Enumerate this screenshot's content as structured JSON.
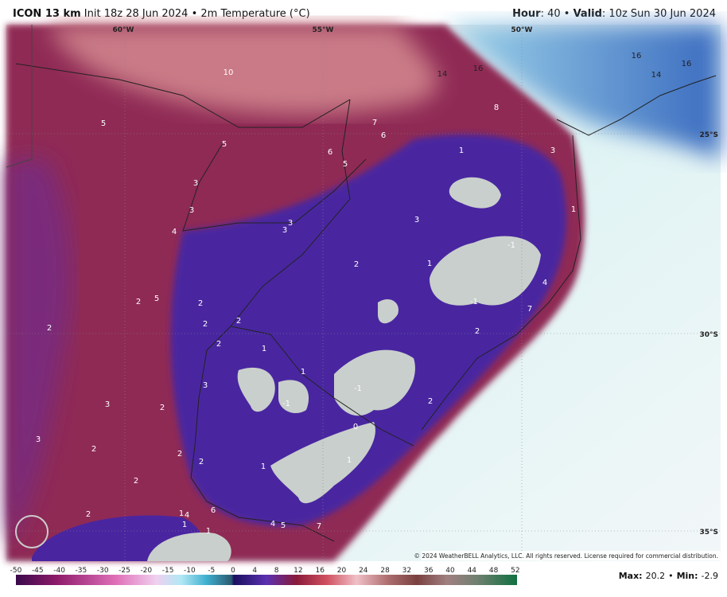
{
  "header": {
    "model": "ICON 13 km",
    "init": "Init 18z 28 Jun 2024",
    "separator": "•",
    "field": "2m Temperature (°C)",
    "hour_label": "Hour",
    "hour_value": ": 40",
    "valid_label": "Valid",
    "valid_value": ": 10z Sun 30 Jun 2024"
  },
  "map_labels": {
    "longitudes": [
      "60°W",
      "55°W",
      "50°W"
    ],
    "latitudes": [
      "25°S",
      "30°S",
      "35°S"
    ],
    "temperatures": [
      "10",
      "14",
      "16",
      "16",
      "14",
      "16",
      "8",
      "5",
      "7",
      "6",
      "5",
      "6",
      "5",
      "1",
      "3",
      "3",
      "3",
      "4",
      "3",
      "3",
      "3",
      "1",
      "-1",
      "2",
      "1",
      "4",
      "2",
      "5",
      "2",
      "-1",
      "7",
      "2",
      "2",
      "2",
      "2",
      "2",
      "1",
      "1",
      "-1",
      "3",
      "-1",
      "3",
      "2",
      "2",
      "0",
      "3",
      "2",
      "2",
      "2",
      "1",
      "1",
      "2",
      "2",
      "1",
      "4",
      "6",
      "1",
      "1",
      "4",
      "5",
      "7"
    ]
  },
  "copyright": "© 2024 WeatherBELL Analytics, LLC. All rights reserved. License required for commercial distribution.",
  "colorbar": {
    "ticks": [
      "-50",
      "-45",
      "-40",
      "-35",
      "-30",
      "-25",
      "-20",
      "-15",
      "-10",
      "-5",
      "0",
      "4",
      "8",
      "12",
      "16",
      "20",
      "24",
      "28",
      "32",
      "36",
      "40",
      "44",
      "48",
      "52"
    ]
  },
  "footer": {
    "max_label": "Max:",
    "max_value": "20.2",
    "separator": "•",
    "min_label": "Min:",
    "min_value": "-2.9"
  }
}
